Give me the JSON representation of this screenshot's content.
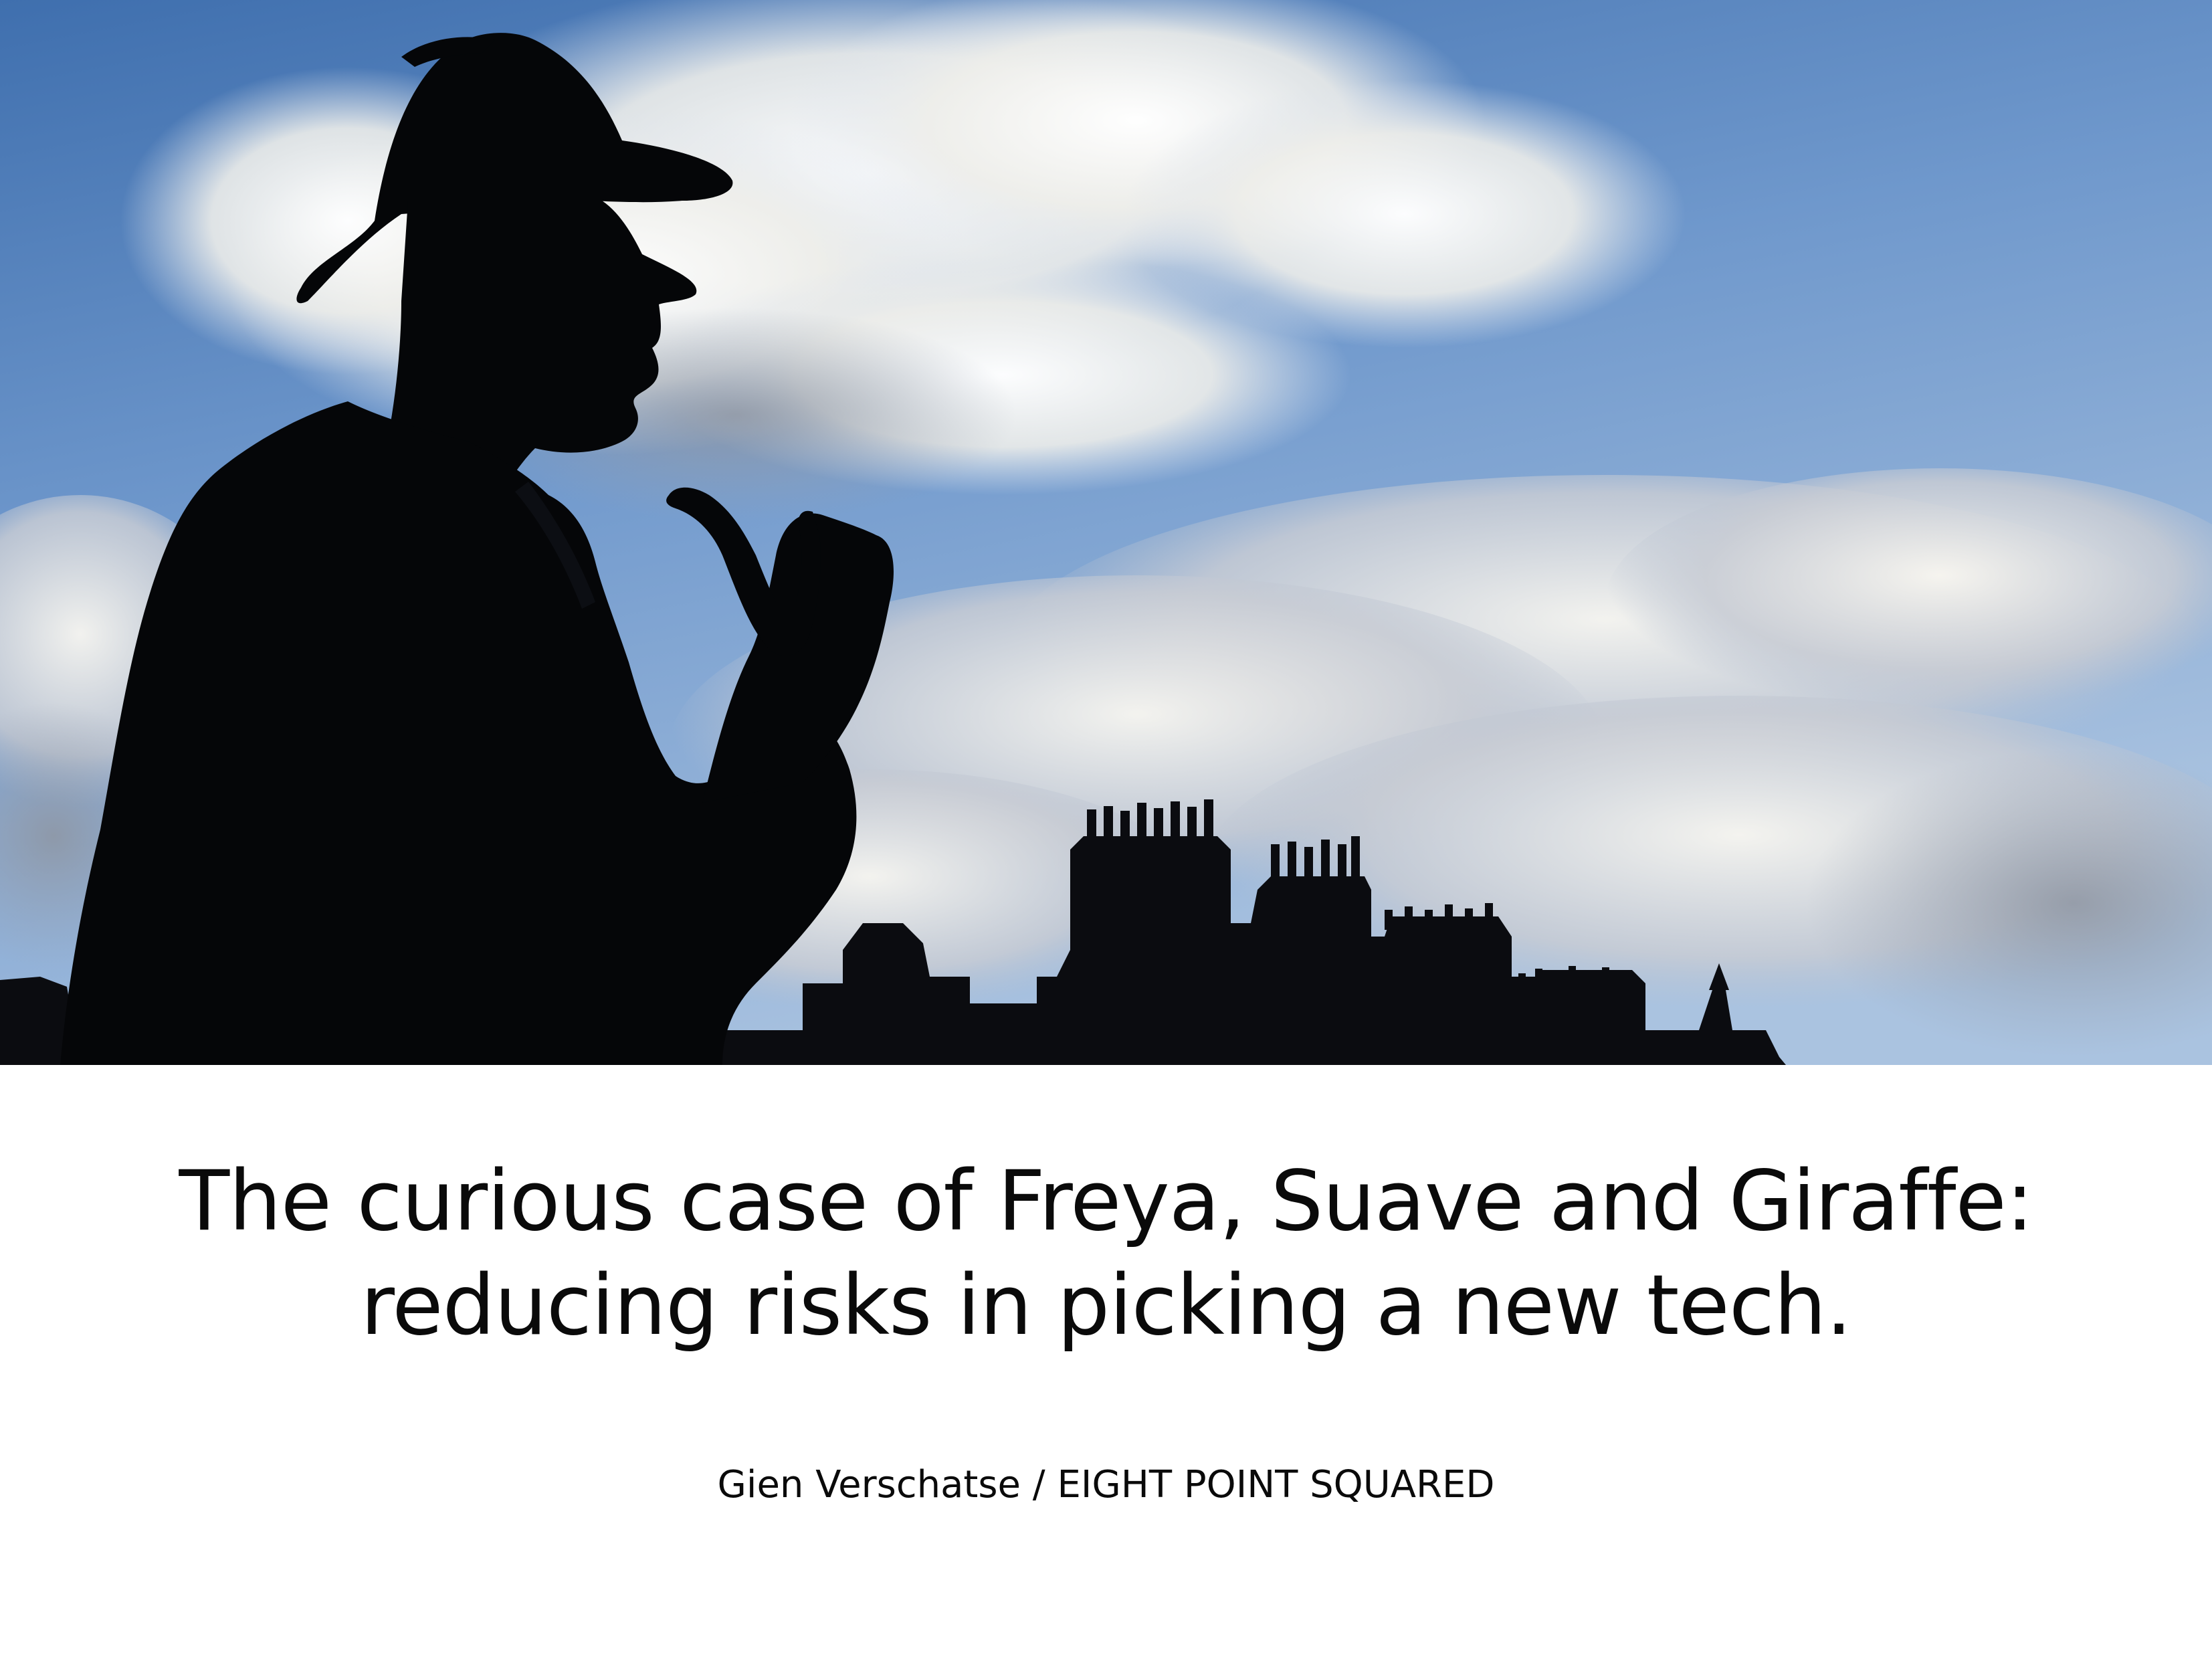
{
  "hero": {
    "image_subject": "silhouette-detective-statue-with-pipe",
    "colors": {
      "sky_top": "#4a7ab8",
      "sky_mid": "#7fa6d4",
      "sky_low": "#b9cde3",
      "cloud": "#f2f1ee",
      "cloud_shadow": "#a8acb4",
      "silhouette": "#050608"
    }
  },
  "title": {
    "line1": "The curious case of Freya, Suave and Giraffe:",
    "line2": "reducing risks in picking a new tech."
  },
  "byline": {
    "text": "Gien Verschatse / EIGHT POINT SQUARED"
  }
}
